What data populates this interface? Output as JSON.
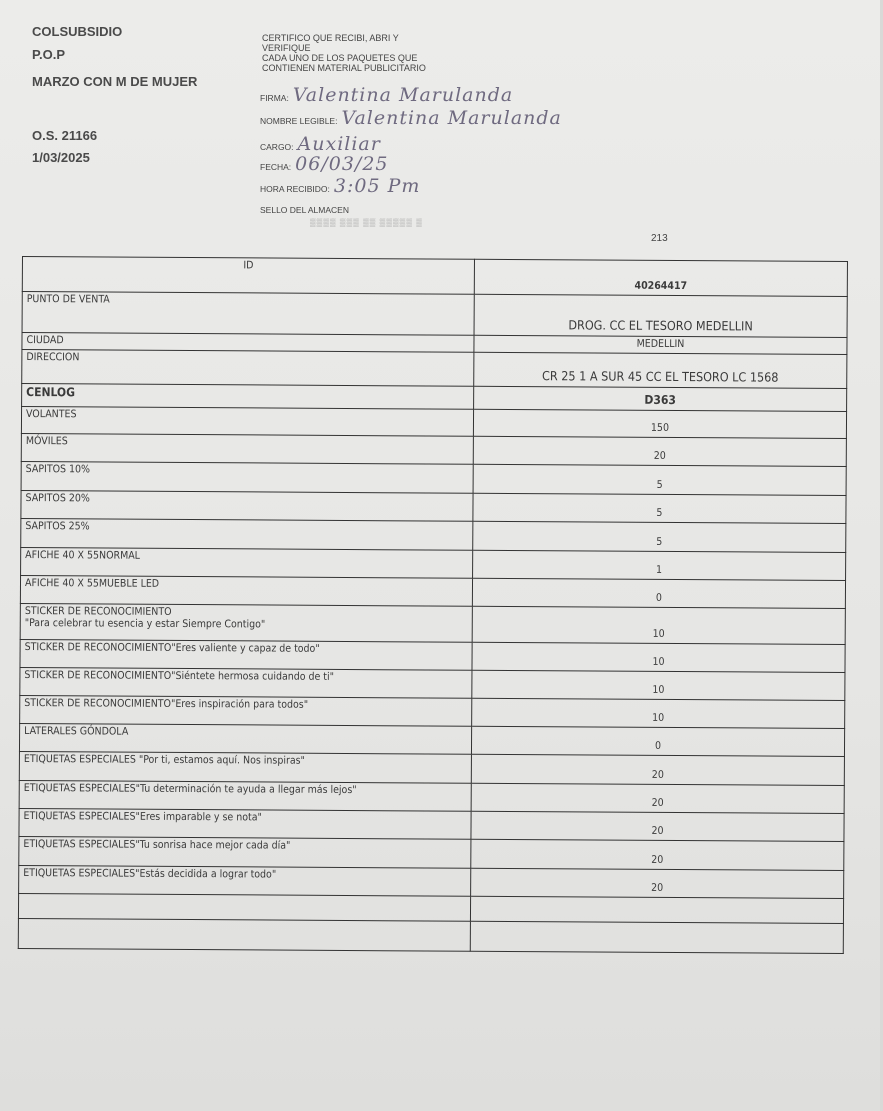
{
  "header": {
    "company": "COLSUBSIDIO",
    "dept": "P.O.P",
    "campaign": "MARZO CON M DE MUJER",
    "order": "O.S. 21166",
    "date": "1/03/2025"
  },
  "certification": {
    "lines": [
      "CERTIFICO QUE RECIBI, ABRI Y",
      "VERIFIQUE",
      "CADA UNO DE LOS PAQUETES QUE",
      "CONTIENEN MATERIAL PUBLICITARIO"
    ],
    "firma_label": "FIRMA:",
    "firma_value": "Valentina Marulanda",
    "nombre_label": "NOMBRE LEGIBLE:",
    "nombre_value": "Valentina Marulanda",
    "cargo_label": "CARGO:",
    "cargo_value": "Auxiliar",
    "fecha_label": "FECHA:",
    "fecha_value": "06/03/25",
    "hora_label": "HORA RECIBIDO:",
    "hora_value": "3:05 Pm",
    "sello_label": "SELLO DEL ALMACEN"
  },
  "page_number": "213",
  "table": {
    "rows": [
      {
        "label": "ID",
        "value": "40264417"
      },
      {
        "label": "PUNTO DE VENTA",
        "value": "DROG. CC EL TESORO MEDELLIN"
      },
      {
        "label": "CIUDAD",
        "value": "MEDELLIN"
      },
      {
        "label": "DIRECCION",
        "value": "CR 25 1 A SUR 45 CC EL TESORO LC 1568"
      },
      {
        "label": "CENLOG",
        "value": "D363"
      },
      {
        "label": "VOLANTES",
        "value": "150"
      },
      {
        "label": "MÓVILES",
        "value": "20"
      },
      {
        "label": "SAPITOS 10%",
        "value": "5"
      },
      {
        "label": "SAPITOS 20%",
        "value": "5"
      },
      {
        "label": "SAPITOS 25%",
        "value": "5"
      },
      {
        "label": "AFICHE 40 X 55NORMAL",
        "value": "1"
      },
      {
        "label": "AFICHE 40 X 55MUEBLE LED",
        "value": "0"
      },
      {
        "label": "STICKER DE RECONOCIMIENTO\n\"Para celebrar tu esencia y estar Siempre Contigo\"",
        "value": "10"
      },
      {
        "label": "STICKER DE RECONOCIMIENTO\"Eres valiente y capaz de todo\"",
        "value": "10"
      },
      {
        "label": "STICKER DE RECONOCIMIENTO\"Siéntete hermosa cuidando de ti\"",
        "value": "10"
      },
      {
        "label": "STICKER DE RECONOCIMIENTO\"Eres inspiración para todos\"",
        "value": "10"
      },
      {
        "label": "LATERALES GÓNDOLA",
        "value": "0"
      },
      {
        "label": "ETIQUETAS ESPECIALES \"Por ti, estamos aquí. Nos inspiras\"",
        "value": "20"
      },
      {
        "label": "ETIQUETAS ESPECIALES\"Tu determinación te ayuda a llegar más lejos\"",
        "value": "20"
      },
      {
        "label": "ETIQUETAS ESPECIALES\"Eres imparable y se nota\"",
        "value": "20"
      },
      {
        "label": "ETIQUETAS ESPECIALES\"Tu sonrisa hace mejor cada día\"",
        "value": "20"
      },
      {
        "label": "ETIQUETAS ESPECIALES\"Estás decidida a lograr todo\"",
        "value": "20"
      },
      {
        "label": "",
        "value": ""
      },
      {
        "label": "",
        "value": ""
      }
    ]
  }
}
